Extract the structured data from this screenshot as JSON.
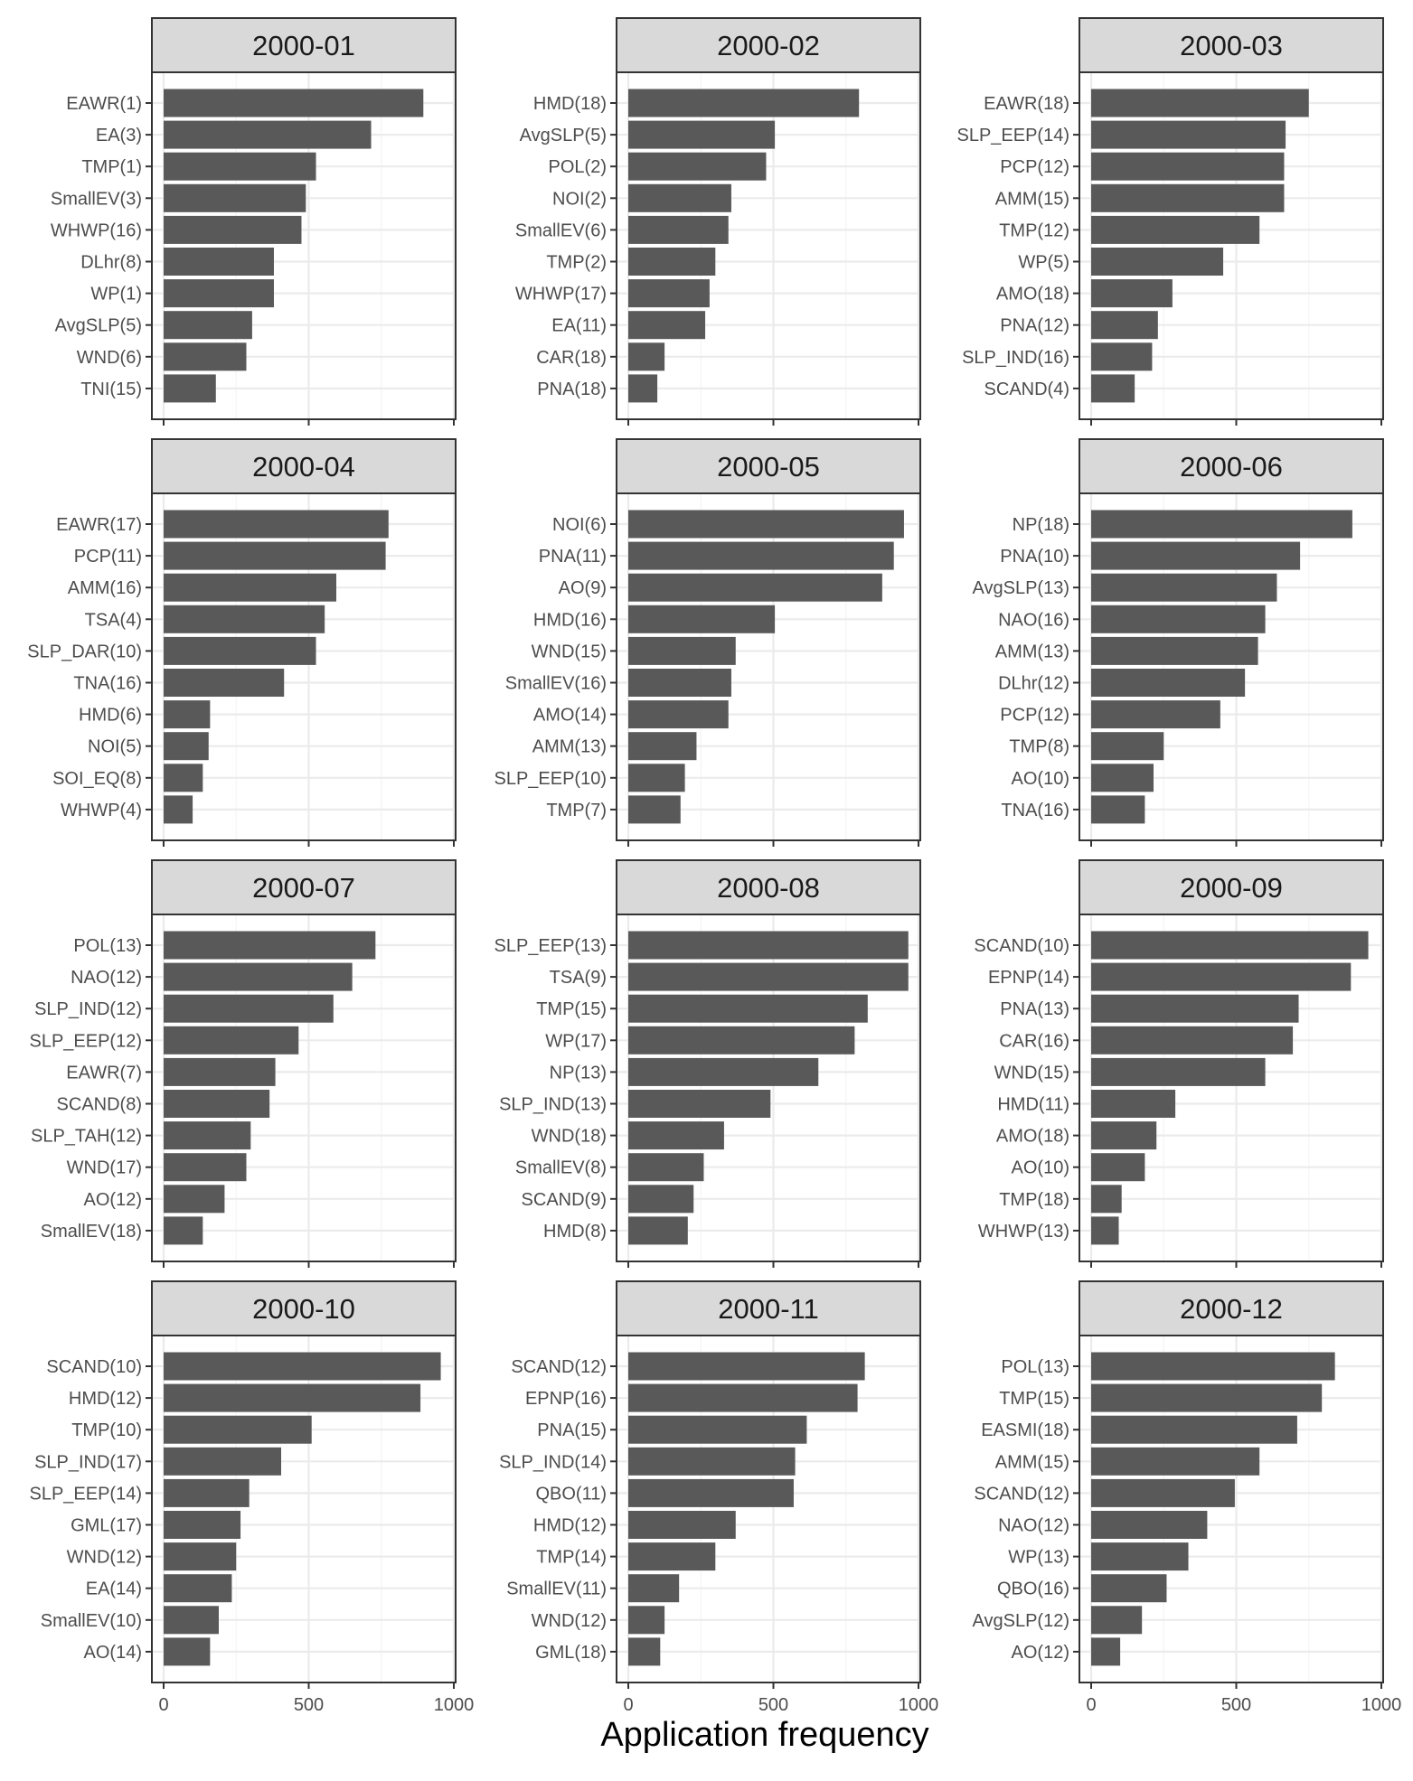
{
  "axis_title": "Application frequency",
  "colors": {
    "bar": "#595959",
    "strip": "#d9d9d9",
    "grid_major": "#ebebeb",
    "grid_minor": "#f4f4f4",
    "frame": "#333333",
    "text": "#4d4d4d",
    "strip_text": "#1a1a1a"
  },
  "chart_data": {
    "type": "bar",
    "orientation": "horizontal",
    "layout": "facet grid 4 rows x 3 columns",
    "xlabel": "Application frequency",
    "xlim": [
      0,
      1000
    ],
    "xticks": [
      0,
      500,
      1000
    ],
    "grid": true,
    "panels": [
      {
        "title": "2000-01",
        "categories": [
          "EAWR(1)",
          "EA(3)",
          "TMP(1)",
          "SmallEV(3)",
          "WHWP(16)",
          "DLhr(8)",
          "WP(1)",
          "AvgSLP(5)",
          "WND(6)",
          "TNI(15)"
        ],
        "values": [
          895,
          715,
          525,
          490,
          475,
          380,
          380,
          305,
          285,
          180
        ]
      },
      {
        "title": "2000-02",
        "categories": [
          "HMD(18)",
          "AvgSLP(5)",
          "POL(2)",
          "NOI(2)",
          "SmallEV(6)",
          "TMP(2)",
          "WHWP(17)",
          "EA(11)",
          "CAR(18)",
          "PNA(18)"
        ],
        "values": [
          795,
          505,
          475,
          355,
          345,
          300,
          280,
          265,
          125,
          100
        ]
      },
      {
        "title": "2000-03",
        "categories": [
          "EAWR(18)",
          "SLP_EEP(14)",
          "PCP(12)",
          "AMM(15)",
          "TMP(12)",
          "WP(5)",
          "AMO(18)",
          "PNA(12)",
          "SLP_IND(16)",
          "SCAND(4)"
        ],
        "values": [
          750,
          670,
          665,
          665,
          580,
          455,
          280,
          230,
          210,
          150
        ]
      },
      {
        "title": "2000-04",
        "categories": [
          "EAWR(17)",
          "PCP(11)",
          "AMM(16)",
          "TSA(4)",
          "SLP_DAR(10)",
          "TNA(16)",
          "HMD(6)",
          "NOI(5)",
          "SOI_EQ(8)",
          "WHWP(4)"
        ],
        "values": [
          775,
          765,
          595,
          555,
          525,
          415,
          160,
          155,
          135,
          100
        ]
      },
      {
        "title": "2000-05",
        "categories": [
          "NOI(6)",
          "PNA(11)",
          "AO(9)",
          "HMD(16)",
          "WND(15)",
          "SmallEV(16)",
          "AMO(14)",
          "AMM(13)",
          "SLP_EEP(10)",
          "TMP(7)"
        ],
        "values": [
          950,
          915,
          875,
          505,
          370,
          355,
          345,
          235,
          195,
          180
        ]
      },
      {
        "title": "2000-06",
        "categories": [
          "NP(18)",
          "PNA(10)",
          "AvgSLP(13)",
          "NAO(16)",
          "AMM(13)",
          "DLhr(12)",
          "PCP(12)",
          "TMP(8)",
          "AO(10)",
          "TNA(16)"
        ],
        "values": [
          900,
          720,
          640,
          600,
          575,
          530,
          445,
          250,
          215,
          185
        ]
      },
      {
        "title": "2000-07",
        "categories": [
          "POL(13)",
          "NAO(12)",
          "SLP_IND(12)",
          "SLP_EEP(12)",
          "EAWR(7)",
          "SCAND(8)",
          "SLP_TAH(12)",
          "WND(17)",
          "AO(12)",
          "SmallEV(18)"
        ],
        "values": [
          730,
          650,
          585,
          465,
          385,
          365,
          300,
          285,
          210,
          135
        ]
      },
      {
        "title": "2000-08",
        "categories": [
          "SLP_EEP(13)",
          "TSA(9)",
          "TMP(15)",
          "WP(17)",
          "NP(13)",
          "SLP_IND(13)",
          "WND(18)",
          "SmallEV(8)",
          "SCAND(9)",
          "HMD(8)"
        ],
        "values": [
          965,
          965,
          825,
          780,
          655,
          490,
          330,
          260,
          225,
          205
        ]
      },
      {
        "title": "2000-09",
        "categories": [
          "SCAND(10)",
          "EPNP(14)",
          "PNA(13)",
          "CAR(16)",
          "WND(15)",
          "HMD(11)",
          "AMO(18)",
          "AO(10)",
          "TMP(18)",
          "WHWP(13)"
        ],
        "values": [
          955,
          895,
          715,
          695,
          600,
          290,
          225,
          185,
          105,
          95
        ]
      },
      {
        "title": "2000-10",
        "categories": [
          "SCAND(10)",
          "HMD(12)",
          "TMP(10)",
          "SLP_IND(17)",
          "SLP_EEP(14)",
          "GML(17)",
          "WND(12)",
          "EA(14)",
          "SmallEV(10)",
          "AO(14)"
        ],
        "values": [
          955,
          885,
          510,
          405,
          295,
          265,
          250,
          235,
          190,
          160
        ]
      },
      {
        "title": "2000-11",
        "categories": [
          "SCAND(12)",
          "EPNP(16)",
          "PNA(15)",
          "SLP_IND(14)",
          "QBO(11)",
          "HMD(12)",
          "TMP(14)",
          "SmallEV(11)",
          "WND(12)",
          "GML(18)"
        ],
        "values": [
          815,
          790,
          615,
          575,
          570,
          370,
          300,
          175,
          125,
          110
        ]
      },
      {
        "title": "2000-12",
        "categories": [
          "POL(13)",
          "TMP(15)",
          "EASMI(18)",
          "AMM(15)",
          "SCAND(12)",
          "NAO(12)",
          "WP(13)",
          "QBO(16)",
          "AvgSLP(12)",
          "AO(12)"
        ],
        "values": [
          840,
          795,
          710,
          580,
          495,
          400,
          335,
          260,
          175,
          100
        ]
      }
    ]
  }
}
